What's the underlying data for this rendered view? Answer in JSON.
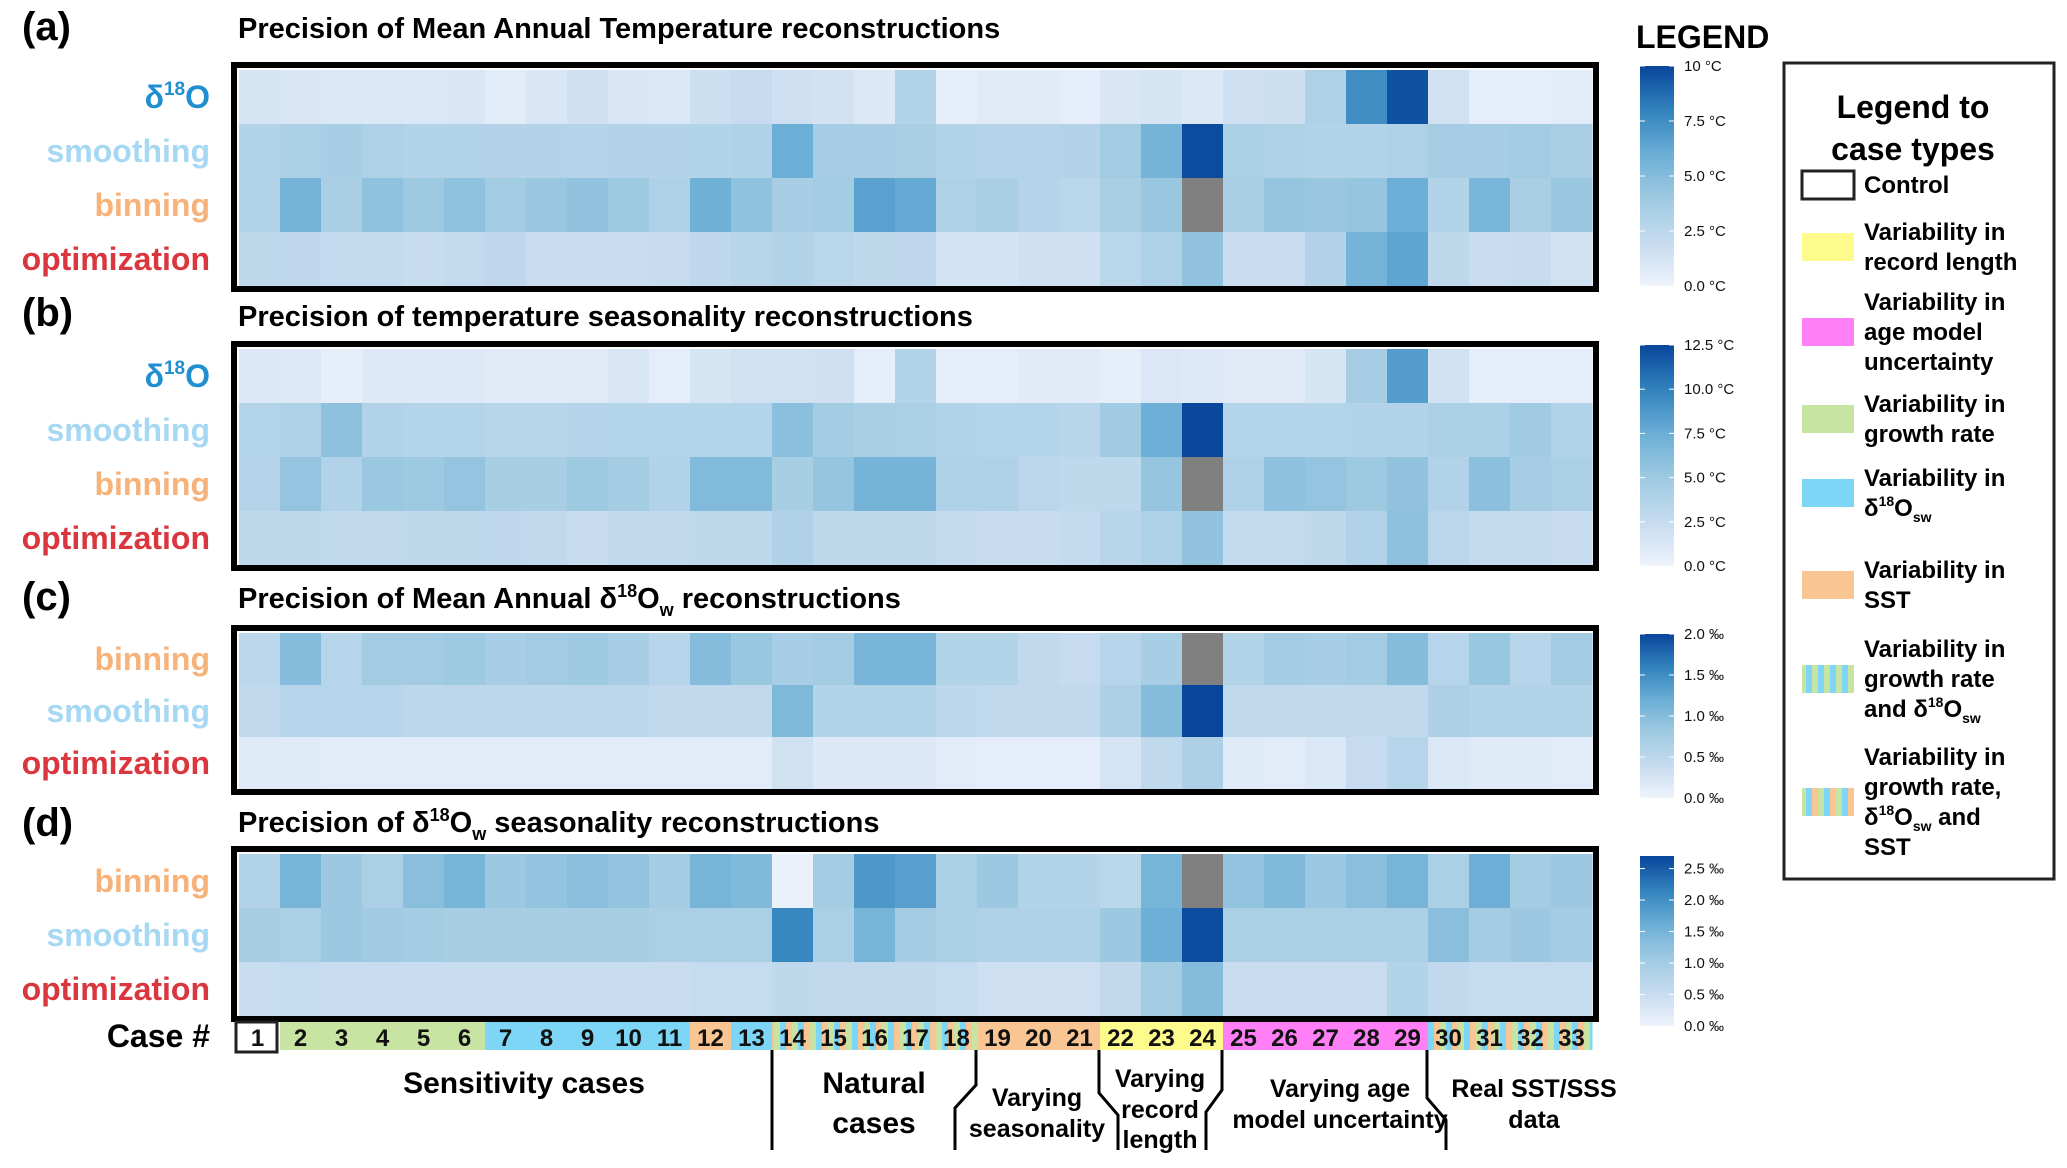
{
  "chart_data": {
    "type": "heatmap",
    "legend_heading": "LEGEND",
    "case_axis_label": "Case #",
    "cases": [
      "1",
      "2",
      "3",
      "4",
      "5",
      "6",
      "7",
      "8",
      "9",
      "10",
      "11",
      "12",
      "13",
      "14",
      "15",
      "16",
      "17",
      "18",
      "19",
      "20",
      "21",
      "22",
      "23",
      "24",
      "25",
      "26",
      "27",
      "28",
      "29",
      "30",
      "31",
      "32",
      "33"
    ],
    "case_types": [
      "control",
      "growth",
      "growth",
      "growth",
      "growth",
      "growth",
      "d18osw",
      "d18osw",
      "d18osw",
      "d18osw",
      "d18osw",
      "sst",
      "d18osw",
      "mix3",
      "mix3",
      "mix3",
      "mix3",
      "mix3",
      "sst",
      "sst",
      "sst",
      "record",
      "record",
      "record",
      "agemodel",
      "agemodel",
      "agemodel",
      "agemodel",
      "agemodel",
      "mix3",
      "mix3",
      "mix3",
      "mix3"
    ],
    "case_groups": [
      {
        "label": [
          "Sensitivity cases"
        ],
        "from": 1,
        "to": 13
      },
      {
        "label": [
          "Natural",
          "cases"
        ],
        "from": 14,
        "to": 18
      },
      {
        "label": [
          "Varying",
          "seasonality"
        ],
        "from": 19,
        "to": 21
      },
      {
        "label": [
          "Varying",
          "record",
          "length"
        ],
        "from": 22,
        "to": 24
      },
      {
        "label": [
          "Varying age",
          "model uncertainty"
        ],
        "from": 25,
        "to": 29
      },
      {
        "label": [
          "Real SST/SSS",
          "data"
        ],
        "from": 30,
        "to": 33
      }
    ],
    "method_colors": {
      "d18O": "#1f8fd0",
      "smoothing": "#a6d8f3",
      "binning": "#f7b27a",
      "optimization": "#d9363e"
    },
    "missing_color": "#808080",
    "colormap": [
      "#eef3fc",
      "#c6dbef",
      "#9ecae1",
      "#6baed6",
      "#3182bd",
      "#08469b"
    ],
    "panels": [
      {
        "letter": "(a)",
        "title": "Precision of Mean Annual Temperature reconstructions",
        "title_parts": [
          [
            "Precision of Mean Annual Temperature reconstructions",
            ""
          ]
        ],
        "unit": "°C",
        "range": [
          0,
          10
        ],
        "ticks": [
          "10 °C",
          "7.5 °C",
          "5.0 °C",
          "2.5 °C",
          "0.0 °C"
        ],
        "tick_values": [
          10,
          7.5,
          5.0,
          2.5,
          0.0
        ],
        "rows": [
          {
            "method": "d18O",
            "label": "δ18O",
            "values": [
              1.2,
              1.1,
              1.0,
              1.0,
              1.0,
              1.1,
              0.6,
              1.1,
              1.6,
              1.1,
              1.0,
              1.7,
              2.0,
              1.6,
              1.4,
              0.9,
              3.0,
              0.4,
              0.7,
              0.7,
              0.5,
              1.1,
              1.2,
              0.9,
              1.6,
              1.7,
              3.2,
              7.5,
              9.6,
              1.5,
              0.5,
              0.5,
              0.6
            ]
          },
          {
            "method": "smoothing",
            "label": "smoothing",
            "values": [
              3.0,
              3.3,
              3.5,
              3.2,
              3.0,
              3.0,
              2.9,
              2.9,
              2.8,
              2.9,
              2.9,
              3.0,
              3.1,
              6.0,
              3.6,
              3.6,
              3.4,
              3.0,
              2.8,
              2.8,
              2.9,
              3.8,
              5.6,
              9.8,
              3.3,
              3.1,
              3.0,
              3.0,
              3.2,
              3.6,
              3.6,
              3.8,
              3.4
            ]
          },
          {
            "method": "binning",
            "label": "binning",
            "values": [
              3.0,
              5.6,
              3.4,
              4.6,
              4.0,
              4.6,
              3.8,
              4.2,
              4.5,
              4.0,
              3.2,
              5.8,
              4.6,
              3.5,
              3.8,
              6.6,
              6.2,
              3.2,
              3.4,
              2.8,
              2.6,
              3.4,
              4.2,
              null,
              3.4,
              4.3,
              4.2,
              4.3,
              6.0,
              3.0,
              5.4,
              3.4,
              4.2
            ]
          },
          {
            "method": "optimization",
            "label": "optimization",
            "values": [
              2.4,
              2.3,
              2.2,
              2.2,
              1.9,
              2.2,
              2.3,
              1.8,
              1.8,
              1.8,
              1.9,
              2.3,
              2.7,
              3.0,
              2.6,
              2.4,
              2.3,
              1.3,
              1.3,
              1.6,
              1.6,
              2.6,
              3.2,
              4.5,
              1.8,
              1.8,
              2.9,
              5.6,
              6.4,
              2.4,
              1.8,
              1.9,
              1.5
            ]
          }
        ]
      },
      {
        "letter": "(b)",
        "title": "Precision of temperature seasonality reconstructions",
        "unit": "°C",
        "range": [
          0,
          12.5
        ],
        "ticks": [
          "12.5 °C",
          "10.0 °C",
          "7.5 °C",
          "5.0 °C",
          "2.5 °C",
          "0.0 °C"
        ],
        "tick_values": [
          12.5,
          10.0,
          7.5,
          5.0,
          2.5,
          0.0
        ],
        "rows": [
          {
            "method": "d18O",
            "label": "δ18O",
            "values": [
              1.1,
              1.0,
              0.5,
              1.0,
              1.0,
              1.0,
              0.8,
              0.8,
              0.9,
              1.4,
              0.6,
              1.5,
              1.9,
              1.9,
              2.0,
              0.6,
              3.7,
              0.6,
              0.6,
              0.8,
              0.8,
              0.5,
              1.2,
              1.0,
              0.9,
              0.9,
              1.5,
              4.5,
              8.5,
              1.8,
              0.6,
              0.6,
              0.6
            ]
          },
          {
            "method": "smoothing",
            "label": "smoothing",
            "values": [
              3.6,
              4.0,
              5.8,
              3.8,
              3.6,
              3.6,
              3.4,
              3.4,
              3.5,
              3.6,
              3.6,
              3.6,
              3.6,
              6.0,
              4.6,
              4.3,
              4.2,
              3.7,
              3.6,
              3.6,
              3.4,
              4.8,
              7.4,
              12.4,
              3.6,
              3.6,
              3.6,
              3.7,
              3.7,
              4.2,
              4.2,
              4.8,
              3.8
            ]
          },
          {
            "method": "binning",
            "label": "binning",
            "values": [
              3.5,
              5.5,
              3.8,
              5.2,
              5.0,
              5.5,
              4.4,
              4.4,
              5.0,
              4.6,
              3.8,
              6.4,
              6.4,
              4.4,
              5.4,
              7.0,
              7.0,
              4.0,
              4.0,
              3.2,
              3.0,
              3.0,
              5.4,
              null,
              4.0,
              5.8,
              5.5,
              5.0,
              5.6,
              3.8,
              6.0,
              4.5,
              4.2
            ]
          },
          {
            "method": "optimization",
            "label": "optimization",
            "values": [
              3.0,
              3.0,
              2.8,
              2.8,
              3.0,
              3.0,
              2.9,
              2.8,
              2.4,
              2.8,
              2.8,
              3.0,
              3.0,
              3.9,
              3.0,
              3.0,
              3.0,
              2.6,
              2.4,
              2.4,
              2.6,
              3.4,
              4.0,
              5.6,
              2.6,
              2.6,
              3.0,
              3.8,
              5.8,
              3.2,
              2.6,
              2.6,
              2.4
            ]
          }
        ]
      },
      {
        "letter": "(c)",
        "title_pre": "Precision of Mean Annual δ",
        "title_sup": "18",
        "title_mid": "O",
        "title_sub": "w",
        "title_post": " reconstructions",
        "unit": "‰",
        "range": [
          0,
          2.0
        ],
        "ticks": [
          "2.0 ‰",
          "1.5 ‰",
          "1.0 ‰",
          "0.5 ‰",
          "0.0 ‰"
        ],
        "tick_values": [
          2.0,
          1.5,
          1.0,
          0.5,
          0.0
        ],
        "rows": [
          {
            "method": "binning",
            "label": "binning",
            "values": [
              0.5,
              1.0,
              0.55,
              0.75,
              0.75,
              0.8,
              0.7,
              0.75,
              0.8,
              0.7,
              0.55,
              1.0,
              0.85,
              0.7,
              0.75,
              1.1,
              1.1,
              0.6,
              0.6,
              0.45,
              0.4,
              0.55,
              0.7,
              null,
              0.6,
              0.75,
              0.7,
              0.75,
              1.0,
              0.55,
              0.85,
              0.55,
              0.75
            ]
          },
          {
            "method": "smoothing",
            "label": "smoothing",
            "values": [
              0.45,
              0.55,
              0.55,
              0.55,
              0.5,
              0.5,
              0.5,
              0.5,
              0.5,
              0.5,
              0.45,
              0.45,
              0.45,
              1.05,
              0.6,
              0.6,
              0.6,
              0.5,
              0.45,
              0.45,
              0.45,
              0.65,
              1.0,
              2.0,
              0.45,
              0.45,
              0.45,
              0.45,
              0.45,
              0.65,
              0.6,
              0.6,
              0.6
            ]
          },
          {
            "method": "optimization",
            "label": "optimization",
            "values": [
              0.15,
              0.15,
              0.12,
              0.12,
              0.12,
              0.12,
              0.12,
              0.12,
              0.12,
              0.12,
              0.12,
              0.12,
              0.12,
              0.3,
              0.18,
              0.18,
              0.18,
              0.12,
              0.1,
              0.1,
              0.1,
              0.25,
              0.45,
              0.65,
              0.15,
              0.12,
              0.2,
              0.4,
              0.55,
              0.2,
              0.15,
              0.15,
              0.12
            ]
          }
        ]
      },
      {
        "letter": "(d)",
        "title_pre": "Precision of δ",
        "title_sup": "18",
        "title_mid": "O",
        "title_sub": "w",
        "title_post": " seasonality reconstructions",
        "unit": "‰",
        "range": [
          0,
          2.7
        ],
        "ticks": [
          "2.5 ‰",
          "2.0 ‰",
          "1.5 ‰",
          "1.0 ‰",
          "0.5 ‰",
          "0.0 ‰"
        ],
        "tick_values": [
          2.5,
          2.0,
          1.5,
          1.0,
          0.5,
          0.0
        ],
        "rows": [
          {
            "method": "binning",
            "label": "binning",
            "values": [
              0.8,
              1.5,
              1.1,
              0.9,
              1.3,
              1.5,
              1.1,
              1.2,
              1.3,
              1.2,
              1.0,
              1.5,
              1.4,
              0.05,
              1.0,
              1.9,
              1.8,
              0.9,
              1.1,
              0.8,
              0.8,
              0.7,
              1.5,
              null,
              1.2,
              1.4,
              1.1,
              1.3,
              1.5,
              0.9,
              1.6,
              1.0,
              1.1
            ]
          },
          {
            "method": "smoothing",
            "label": "smoothing",
            "values": [
              0.95,
              0.9,
              1.1,
              1.05,
              1.0,
              0.95,
              0.95,
              0.95,
              0.95,
              0.95,
              0.9,
              0.9,
              0.9,
              2.1,
              0.9,
              1.5,
              1.0,
              0.9,
              0.85,
              0.85,
              0.85,
              1.1,
              1.6,
              2.65,
              0.9,
              0.9,
              0.9,
              0.9,
              0.9,
              1.3,
              1.0,
              1.1,
              1.0
            ]
          },
          {
            "method": "optimization",
            "label": "optimization",
            "values": [
              0.5,
              0.55,
              0.5,
              0.5,
              0.5,
              0.5,
              0.5,
              0.5,
              0.5,
              0.5,
              0.5,
              0.55,
              0.55,
              0.65,
              0.6,
              0.6,
              0.6,
              0.55,
              0.45,
              0.45,
              0.45,
              0.6,
              1.0,
              1.35,
              0.5,
              0.5,
              0.5,
              0.5,
              0.8,
              0.6,
              0.55,
              0.55,
              0.55
            ]
          }
        ]
      }
    ]
  },
  "legend_box": {
    "title": [
      "Legend to",
      "case types"
    ],
    "items": [
      {
        "key": "control",
        "lines": [
          "Control"
        ]
      },
      {
        "key": "record",
        "lines": [
          "Variability in",
          "record length"
        ],
        "color": "#fdfb8c"
      },
      {
        "key": "agemodel",
        "lines": [
          "Variability in",
          "age model",
          "uncertainty"
        ],
        "color": "#ff7ff7"
      },
      {
        "key": "growth",
        "lines": [
          "Variability in",
          "growth rate"
        ],
        "color": "#c8e4a2"
      },
      {
        "key": "d18osw",
        "lines": [
          "Variability in",
          "δ18Osw"
        ],
        "color": "#7dd6f6"
      },
      {
        "key": "sst",
        "lines": [
          "Variability in",
          "SST"
        ],
        "color": "#f9c593"
      },
      {
        "key": "mix2",
        "lines": [
          "Variability in",
          "growth rate",
          "and δ18Osw"
        ],
        "colors": [
          "#c8e4a2",
          "#7dd6f6"
        ]
      },
      {
        "key": "mix3",
        "lines": [
          "Variability in",
          "growth rate,",
          "δ18Osw and",
          "SST"
        ],
        "colors": [
          "#c8e4a2",
          "#7dd6f6",
          "#f9c593"
        ]
      }
    ]
  }
}
